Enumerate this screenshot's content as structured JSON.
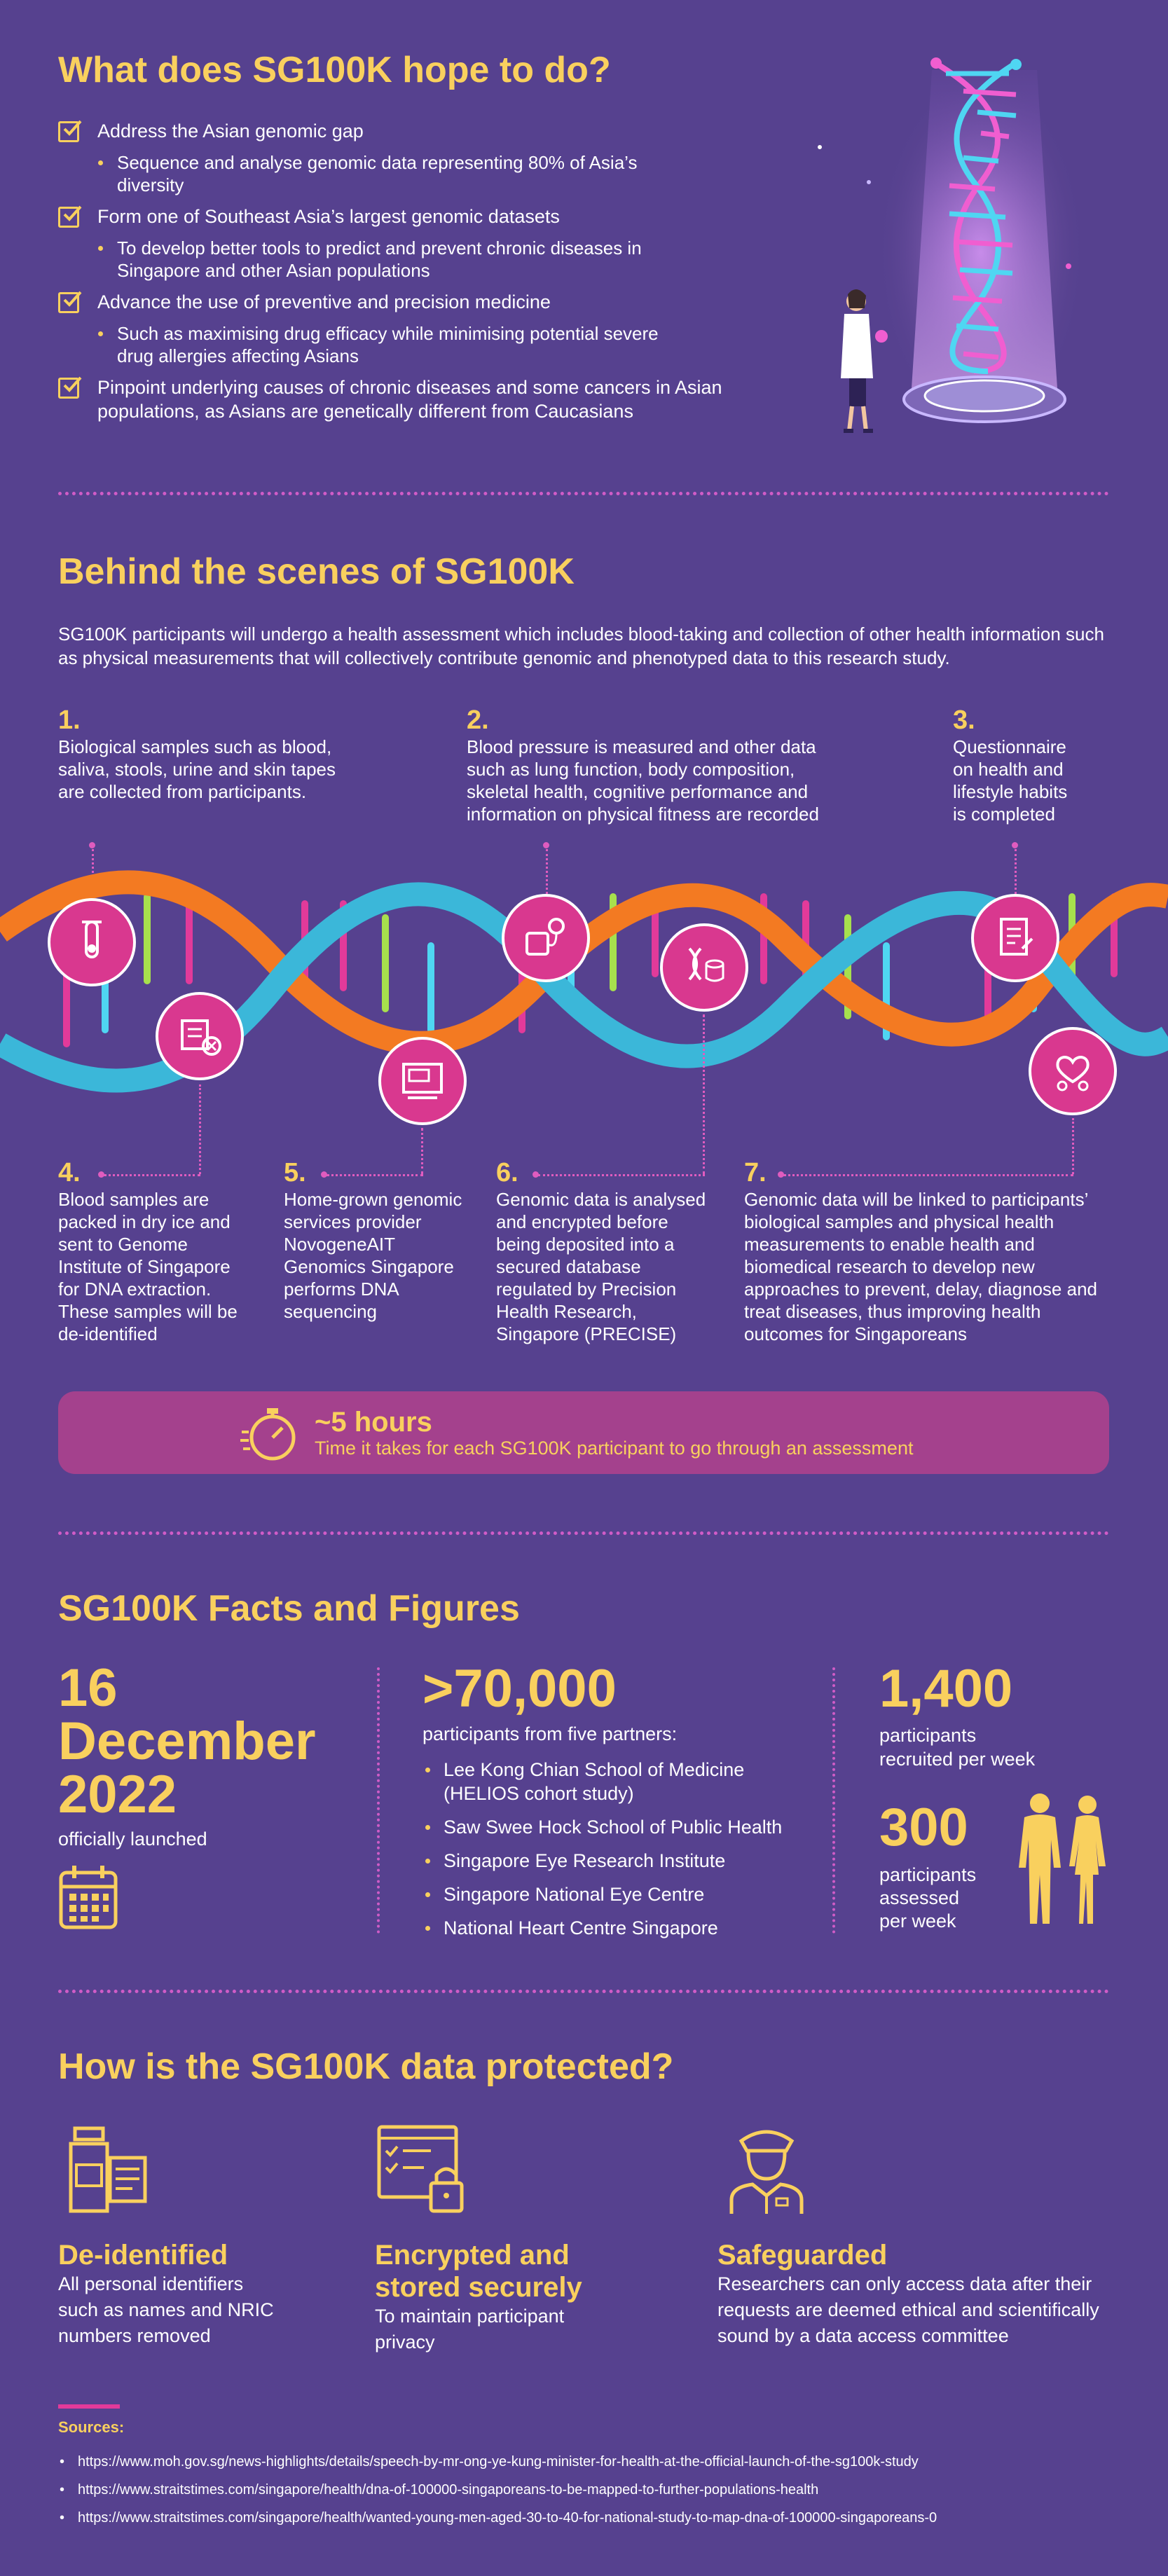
{
  "hope": {
    "title": "What does SG100K hope to do?",
    "goals": [
      {
        "text": "Address the Asian genomic gap",
        "sub": "Sequence and analyse genomic data representing 80% of Asia’s diversity"
      },
      {
        "text": "Form one of Southeast Asia’s largest genomic datasets",
        "sub": "To develop better tools to predict and prevent chronic diseases in Singapore and other Asian populations"
      },
      {
        "text": "Advance the use of preventive and precision medicine",
        "sub": "Such as maximising drug efficacy while minimising potential severe drug allergies affecting Asians"
      },
      {
        "text": "Pinpoint underlying causes of chronic diseases and some cancers in Asian populations, as Asians are genetically different from Caucasians",
        "sub": ""
      }
    ]
  },
  "scenes": {
    "title": "Behind the scenes of SG100K",
    "intro": "SG100K participants will undergo a health assessment which includes blood-taking and collection of other health information such as physical measurements that will collectively contribute genomic and phenotyped data to this research study.",
    "steps": [
      {
        "num": "1.",
        "text": "Biological samples such as blood, saliva, stools, urine and skin tapes are collected from participants."
      },
      {
        "num": "2.",
        "text": "Blood pressure is measured and other data such as lung function, body composition, skeletal health, cognitive performance and information on physical fitness are recorded"
      },
      {
        "num": "3.",
        "text": "Questionnaire on health and lifestyle habits is completed"
      },
      {
        "num": "4.",
        "text": "Blood samples are packed in dry ice and sent to Genome Institute of Singapore for DNA extraction. These samples will be de-identified"
      },
      {
        "num": "5.",
        "text": "Home-grown genomic services provider NovogeneAIT Genomics Singapore performs DNA sequencing"
      },
      {
        "num": "6.",
        "text": "Genomic data is analysed and encrypted before being deposited into a secured database regulated by Precision Health Research, Singapore (PRECISE)"
      },
      {
        "num": "7.",
        "text": "Genomic data will be linked to participants’ biological samples and physical health measurements to enable health and biomedical research to develop new approaches to prevent, delay, diagnose and treat diseases, thus improving health outcomes for Singaporeans"
      }
    ],
    "time_value": "~5 hours",
    "time_label": "Time it takes for each SG100K participant to go through an assessment"
  },
  "facts": {
    "title": "SG100K Facts and Figures",
    "launch_day": "16",
    "launch_month": "December",
    "launch_year": "2022",
    "launch_label": "officially launched",
    "participants_value": ">70,000",
    "participants_label": "participants from five partners:",
    "partners": [
      "Lee Kong Chian School of Medicine (HELIOS cohort study)",
      "Saw Swee Hock School of Public Health",
      "Singapore Eye Research Institute",
      "Singapore National Eye Centre",
      "National Heart Centre Singapore"
    ],
    "recruited_value": "1,400",
    "recruited_label": "participants recruited per week",
    "assessed_value": "300",
    "assessed_label": "participants assessed per week"
  },
  "protect": {
    "title": "How is the SG100K data protected?",
    "items": [
      {
        "title": "De-identified",
        "text": "All personal identifiers such as names and NRIC numbers removed"
      },
      {
        "title": "Encrypted and stored securely",
        "text": "To maintain participant privacy"
      },
      {
        "title": "Safeguarded",
        "text": "Researchers can only access data after their requests are deemed ethical and scientifically sound by a data access committee"
      }
    ]
  },
  "sources": {
    "title": "Sources:",
    "items": [
      "https://www.moh.gov.sg/news-highlights/details/speech-by-mr-ong-ye-kung-minister-for-health-at-the-official-launch-of-the-sg100k-study",
      "https://www.straitstimes.com/singapore/health/dna-of-100000-singaporeans-to-be-mapped-to-further-populations-health",
      "https://www.straitstimes.com/singapore/health/wanted-young-men-aged-30-to-40-for-national-study-to-map-dna-of-100000-singaporeans-0"
    ]
  },
  "colors": {
    "background": "#56418f",
    "accent": "#f9d05e",
    "pink": "#d9388f",
    "timebox": "#a4418d"
  }
}
